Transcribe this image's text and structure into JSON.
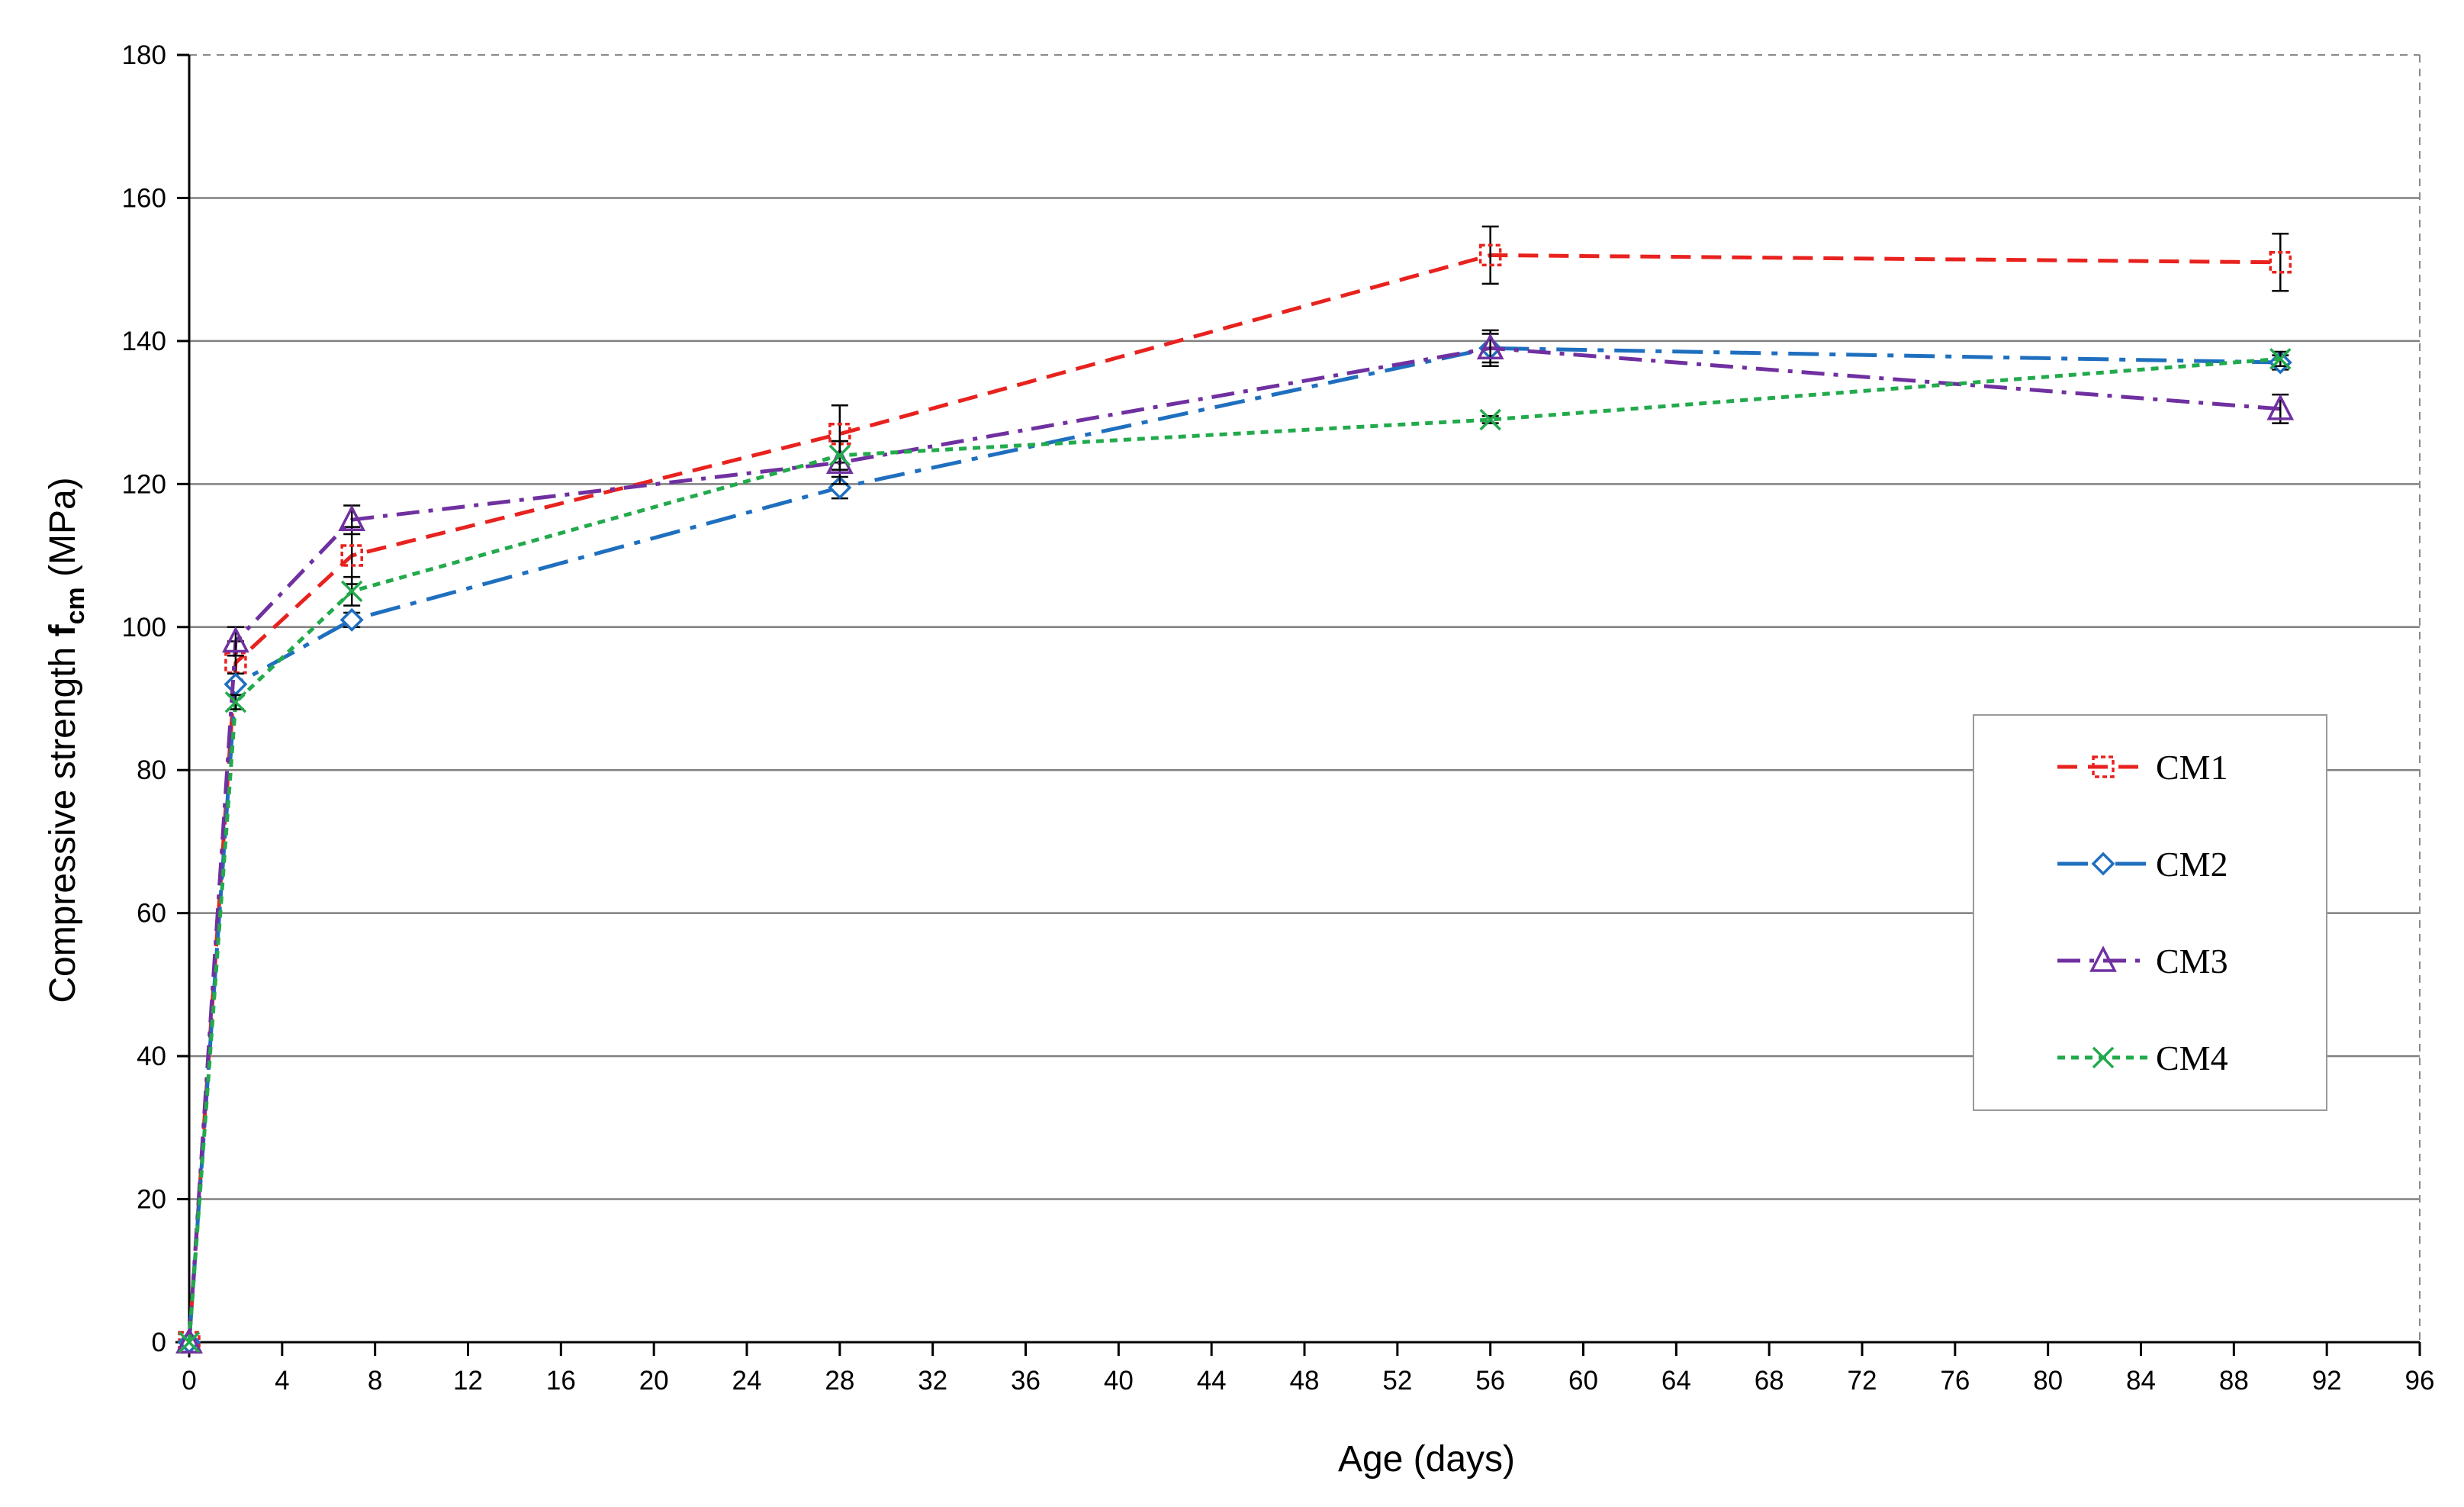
{
  "chart_data": {
    "type": "line",
    "title": "",
    "xlabel": "Age (days)",
    "ylabel": {
      "prefix": "Compressive strength ",
      "symbol": "f",
      "subscript": "cm",
      "suffix": " (MPa)"
    },
    "xlim": [
      0,
      96
    ],
    "ylim": [
      0,
      180
    ],
    "xticks": [
      0,
      4,
      8,
      12,
      16,
      20,
      24,
      28,
      32,
      36,
      40,
      44,
      48,
      52,
      56,
      60,
      64,
      68,
      72,
      76,
      80,
      84,
      88,
      92,
      96
    ],
    "yticks": [
      0,
      20,
      40,
      60,
      80,
      100,
      120,
      140,
      160,
      180
    ],
    "grid": {
      "horizontal": true,
      "vertical": false
    },
    "legend_position": "right",
    "series": [
      {
        "name": "CM1",
        "color": "#e8221e",
        "marker": "square",
        "dash": "dashed",
        "x": [
          0,
          2,
          7,
          28,
          56,
          90
        ],
        "y": [
          0,
          95,
          110,
          127,
          152,
          151
        ],
        "error": [
          0,
          3,
          4,
          4,
          4,
          4
        ]
      },
      {
        "name": "CM2",
        "color": "#1f6fbf",
        "marker": "diamond",
        "dash": "long-dash-dot",
        "x": [
          0,
          2,
          7,
          28,
          56,
          90
        ],
        "y": [
          0,
          92,
          101,
          119.5,
          139,
          137
        ],
        "error": [
          0,
          1.5,
          1,
          1.5,
          2,
          1
        ]
      },
      {
        "name": "CM3",
        "color": "#7030a0",
        "marker": "triangle",
        "dash": "dash-dot",
        "x": [
          0,
          2,
          7,
          28,
          56,
          90
        ],
        "y": [
          0,
          98,
          115,
          123,
          139,
          130.5
        ],
        "error": [
          0,
          2,
          2,
          3,
          2.5,
          2
        ]
      },
      {
        "name": "CM4",
        "color": "#22aa4c",
        "marker": "x",
        "dash": "dotted",
        "x": [
          0,
          2,
          7,
          28,
          56,
          90
        ],
        "y": [
          0,
          89.5,
          105,
          124,
          129,
          137.5
        ],
        "error": [
          0,
          1,
          2,
          2,
          0.5,
          1
        ]
      }
    ]
  }
}
